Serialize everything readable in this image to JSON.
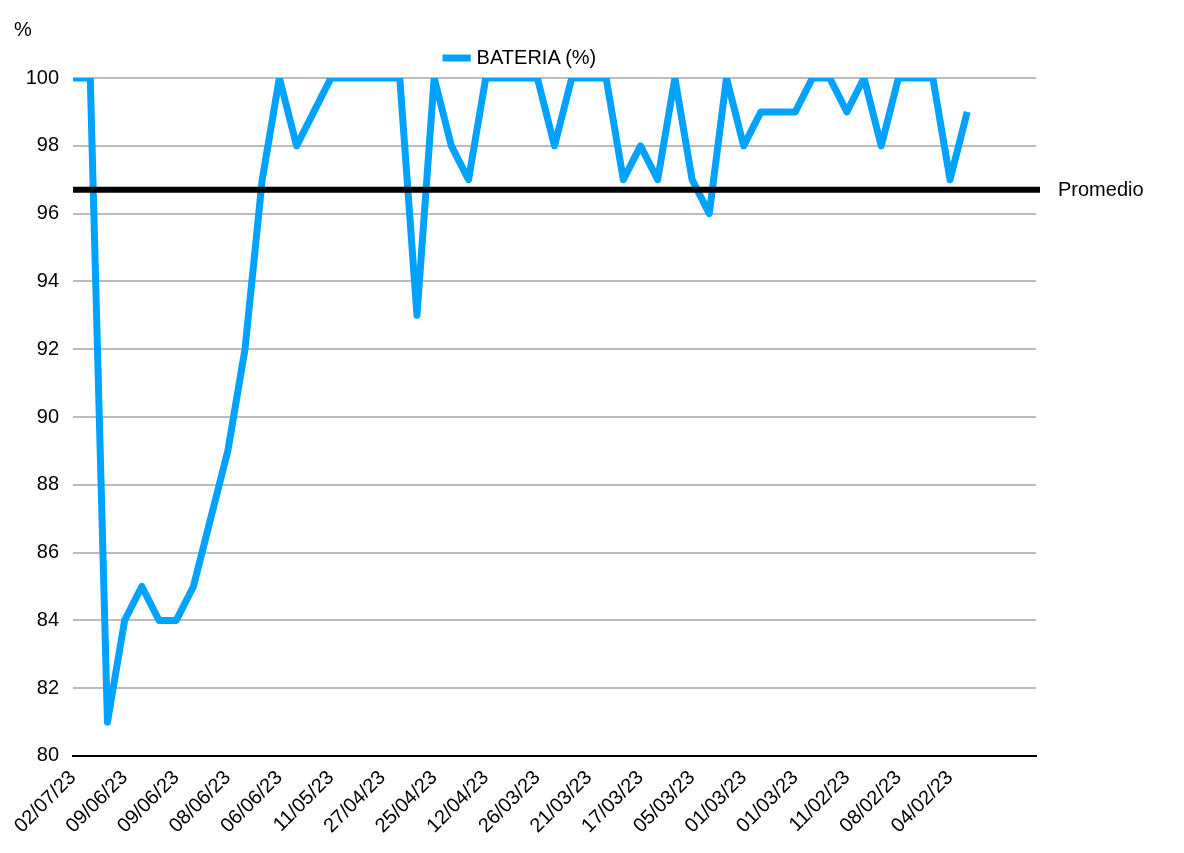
{
  "chart_data": {
    "type": "line",
    "ylabel": "%",
    "categories": [
      "02/07/23",
      null,
      null,
      "09/06/23",
      null,
      null,
      "09/06/23",
      null,
      null,
      "08/06/23",
      null,
      null,
      "06/06/23",
      null,
      null,
      "11/05/23",
      null,
      null,
      "27/04/23",
      null,
      null,
      "25/04/23",
      null,
      null,
      "12/04/23",
      null,
      null,
      "26/03/23",
      null,
      null,
      "21/03/23",
      null,
      null,
      "17/03/23",
      null,
      null,
      "05/03/23",
      null,
      null,
      "01/03/23",
      null,
      null,
      "01/03/23",
      null,
      null,
      "11/02/23",
      null,
      null,
      "08/02/23",
      null,
      null,
      "04/02/23",
      null,
      null,
      null,
      null,
      null
    ],
    "series": [
      {
        "name": "BATERIA (%)",
        "color": "#00a2ff",
        "values": [
          100,
          100,
          81,
          84,
          85,
          84,
          84,
          85,
          87,
          89,
          92,
          97,
          100,
          98,
          99,
          100,
          100,
          100,
          100,
          100,
          93,
          100,
          98,
          97,
          100,
          100,
          100,
          100,
          98,
          100,
          100,
          100,
          97,
          98,
          97,
          100,
          97,
          96,
          100,
          98,
          99,
          99,
          99,
          100,
          100,
          99,
          100,
          98,
          100,
          100,
          100,
          97,
          99,
          null,
          null,
          null,
          null
        ]
      }
    ],
    "ylim": [
      80,
      100
    ],
    "yticks": [
      80,
      82,
      84,
      86,
      88,
      90,
      92,
      94,
      96,
      98,
      100
    ],
    "ref_lines": [
      {
        "axis": "y",
        "value": 96.7,
        "label": "Promedio",
        "color": "#000000"
      }
    ],
    "grid": "y",
    "legend": "top",
    "marker": "none",
    "line_style": "solid"
  }
}
